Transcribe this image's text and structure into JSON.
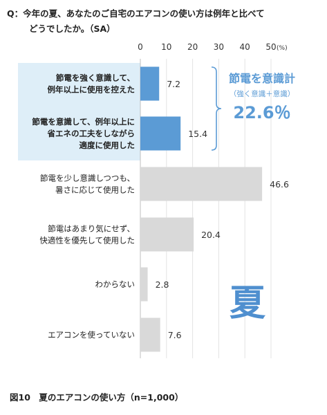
{
  "question": {
    "line1": "Q：今年の夏、あなたのご自宅のエアコンの使い方は例年と比べて",
    "line2": "どうでしたか。（SA）"
  },
  "caption": "図10　夏のエアコンの使い方（n=1,000）",
  "colors": {
    "highlight_bar": "#5b9bd5",
    "normal_bar": "#d9d9d9",
    "highlight_bg": "#deeef8",
    "accent_text": "#5b9bd5",
    "big_char": "#4f8fcf"
  },
  "chart_data": {
    "type": "bar",
    "orientation": "horizontal",
    "categories": [
      [
        "節電を強く意識して、",
        "例年以上に使用を控えた"
      ],
      [
        "節電を意識して、例年以上に",
        "省エネの工夫をしながら",
        "適度に使用した"
      ],
      [
        "節電を少し意識しつつも、",
        "暑さに応じて使用した"
      ],
      [
        "節電はあまり気にせず、",
        "快適性を優先して使用した"
      ],
      [
        "わからない"
      ],
      [
        "エアコンを使っていない"
      ]
    ],
    "values": [
      7.2,
      15.4,
      46.6,
      20.4,
      2.8,
      7.6
    ],
    "value_labels": [
      "7.2",
      "15.4",
      "46.6",
      "20.4",
      "2.8",
      "7.6"
    ],
    "highlighted": [
      true,
      true,
      false,
      false,
      false,
      false
    ],
    "xlim": [
      0,
      50
    ],
    "xticks": [
      "0",
      "10",
      "20",
      "30",
      "40",
      "50"
    ],
    "unit": "(%)",
    "grid": true,
    "annotation": {
      "title": "節電を意識計",
      "subtitle": "（強く意識＋意識）",
      "value": "22.6％"
    },
    "watermark": "夏"
  }
}
